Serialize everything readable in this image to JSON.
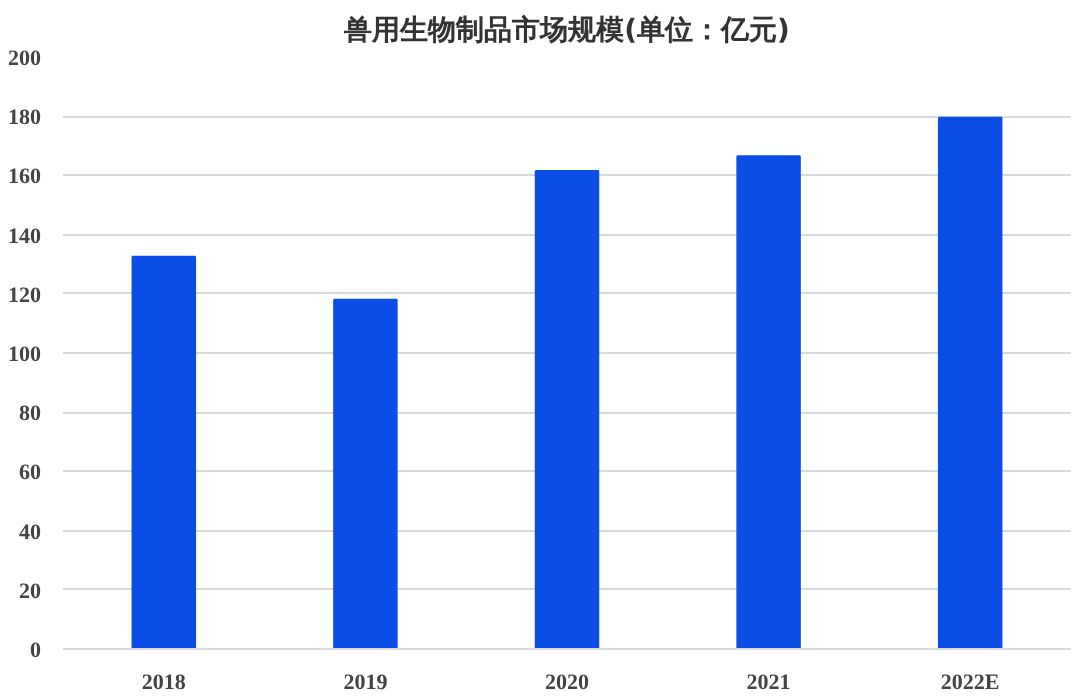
{
  "chart_data": {
    "type": "bar",
    "title": "兽用生物制品市场规模(单位：亿元)",
    "categories": [
      "2018",
      "2019",
      "2020",
      "2021",
      "2022E"
    ],
    "values": [
      132.5,
      118,
      161.5,
      166.5,
      179.5
    ],
    "color": "#0b4ee6",
    "ylim": [
      0,
      200
    ],
    "yticks": [
      0,
      20,
      40,
      60,
      80,
      100,
      120,
      140,
      160,
      180,
      200
    ],
    "grid": "y"
  }
}
